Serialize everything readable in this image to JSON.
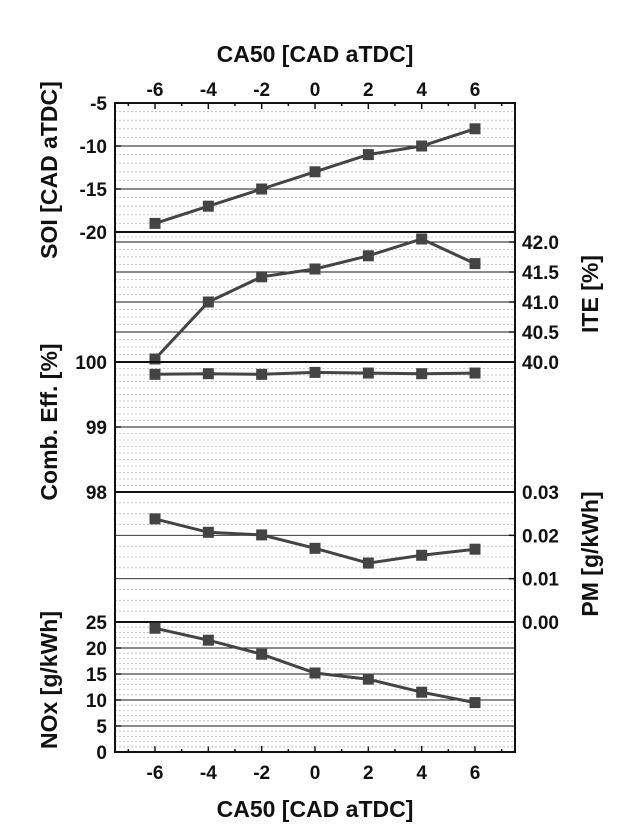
{
  "chart_data": {
    "type": "line",
    "layout": "stacked-panels",
    "x_top_label": "CA50 [CAD aTDC]",
    "x_bottom_label": "CA50 [CAD aTDC]",
    "x": [
      -6,
      -4,
      -2,
      0,
      2,
      4,
      6
    ],
    "x_ticks": [
      "-6",
      "-4",
      "-2",
      "0",
      "2",
      "4",
      "6"
    ],
    "xlim": [
      -7.5,
      7.5
    ],
    "panels": [
      {
        "name": "soi",
        "ylabel": "SOI [CAD aTDC]",
        "axis_side": "left",
        "ylim": [
          -20,
          -5
        ],
        "y_ticks": [
          "-5",
          "-10",
          "-15",
          "-20"
        ],
        "y_tick_values": [
          -5,
          -10,
          -15,
          -20
        ],
        "values": [
          -19,
          -17,
          -15,
          -13,
          -11,
          -10,
          -8
        ]
      },
      {
        "name": "ite",
        "ylabel": "ITE [%]",
        "axis_side": "right",
        "ylim": [
          40.0,
          42.2
        ],
        "y_ticks": [
          "42.0",
          "41.5",
          "41.0",
          "40.5",
          "40.0"
        ],
        "y_tick_values": [
          42.0,
          41.5,
          41.0,
          40.5,
          40.0
        ],
        "values": [
          40.05,
          41.0,
          41.42,
          41.55,
          41.77,
          42.05,
          41.64
        ]
      },
      {
        "name": "comb-eff",
        "ylabel": "Comb. Eff. [%]",
        "axis_side": "left",
        "ylim": [
          98,
          100
        ],
        "y_ticks": [
          "100",
          "99",
          "98"
        ],
        "y_tick_values": [
          100,
          99,
          98
        ],
        "values": [
          99.81,
          99.82,
          99.81,
          99.84,
          99.83,
          99.82,
          99.83
        ]
      },
      {
        "name": "pm",
        "ylabel": "PM [g/kWh]",
        "axis_side": "right",
        "ylim": [
          0.0,
          0.03
        ],
        "y_ticks": [
          "0.03",
          "0.02",
          "0.01",
          "0.00"
        ],
        "y_tick_values": [
          0.03,
          0.02,
          0.01,
          0.0
        ],
        "values": [
          0.0238,
          0.0207,
          0.0201,
          0.017,
          0.0136,
          0.0154,
          0.0168
        ]
      },
      {
        "name": "nox",
        "ylabel": "NOx [g/kWh]",
        "axis_side": "left",
        "ylim": [
          0,
          25
        ],
        "y_ticks": [
          "25",
          "20",
          "15",
          "10",
          "5",
          "0"
        ],
        "y_tick_values": [
          25,
          20,
          15,
          10,
          5,
          0
        ],
        "values": [
          23.8,
          21.5,
          18.8,
          15.2,
          14.0,
          11.5,
          9.5
        ]
      }
    ],
    "grid": true,
    "marker": "square",
    "colors": {
      "series": "#444444",
      "axis": "#111111",
      "minor_grid": "#b9b9b9"
    }
  }
}
